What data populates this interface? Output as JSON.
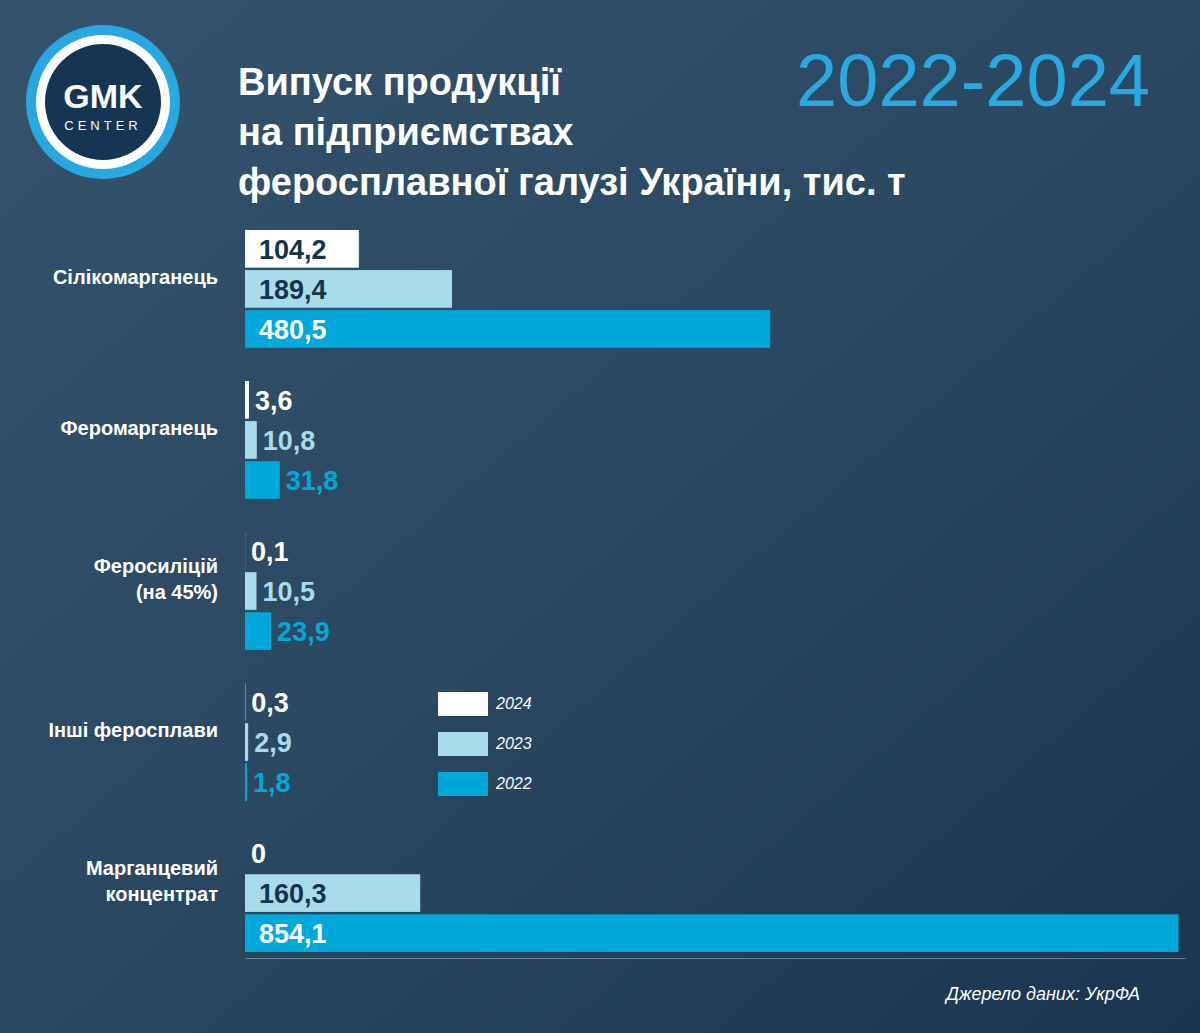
{
  "chart_data": {
    "type": "bar",
    "orientation": "horizontal",
    "title": "Випуск продукції\nна підприємствах\nферосплавної галузі України, тис. т",
    "subtitle": "2022-2024",
    "logo": "GMK",
    "logo_subtext": "CENTER",
    "source": "Джерело даних: УкрФА",
    "categories": [
      "Сілікомарганець",
      "Феромарганець",
      "Феросиліцій\n(на 45%)",
      "Інші феросплави",
      "Марганцевий\nконцентрат"
    ],
    "series": [
      {
        "name": "2024",
        "color": "#ffffff",
        "values": [
          104.2,
          3.6,
          0.1,
          0.3,
          0
        ],
        "value_labels": [
          "104,2",
          "3,6",
          "0,1",
          "0,3",
          "0"
        ]
      },
      {
        "name": "2023",
        "color": "#a9dcea",
        "values": [
          189.4,
          10.8,
          10.5,
          2.9,
          160.3
        ],
        "value_labels": [
          "189,4",
          "10,8",
          "10,5",
          "2,9",
          "160,3"
        ]
      },
      {
        "name": "2022",
        "color": "#00a9d9",
        "values": [
          480.5,
          31.8,
          23.9,
          1.8,
          854.1
        ],
        "value_labels": [
          "480,5",
          "31,8",
          "23,9",
          "1,8",
          "854,1"
        ]
      }
    ],
    "xlim": [
      0,
      860
    ],
    "data_labels": true,
    "tick_labels": false,
    "grid": false,
    "legend": "center"
  }
}
